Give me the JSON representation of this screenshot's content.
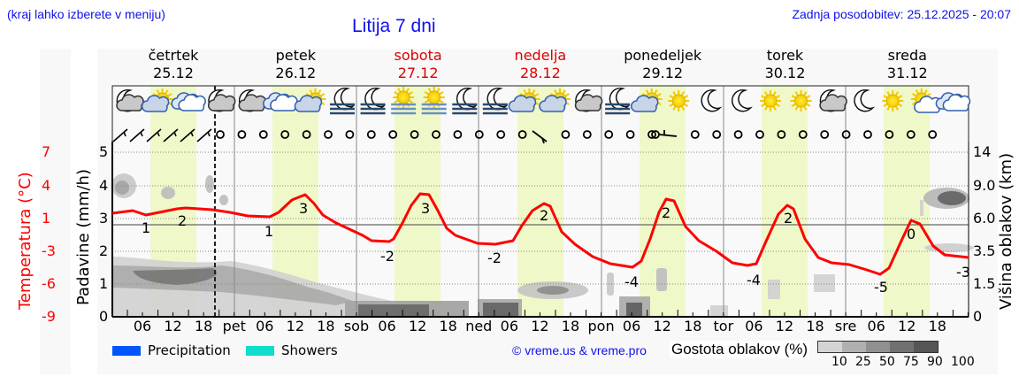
{
  "header": {
    "note": "(kraj lahko izberete v meniju)",
    "title": "Litija 7 dni",
    "updated": "Zadnja posodobitev: 25.12.2025 - 20:07"
  },
  "days": [
    {
      "name": "četrtek",
      "date": "25.12",
      "weekend": false
    },
    {
      "name": "petek",
      "date": "26.12",
      "weekend": false
    },
    {
      "name": "sobota",
      "date": "27.12",
      "weekend": true
    },
    {
      "name": "nedelja",
      "date": "28.12",
      "weekend": true
    },
    {
      "name": "ponedeljek",
      "date": "29.12",
      "weekend": false
    },
    {
      "name": "torek",
      "date": "30.12",
      "weekend": false
    },
    {
      "name": "sreda",
      "date": "31.12",
      "weekend": false
    }
  ],
  "axes": {
    "left_title": "Padavine (mm/h)",
    "left_ticks": [
      "0",
      "1",
      "2",
      "3",
      "4",
      "5"
    ],
    "temp_title": "Temperatura (°C)",
    "temp_ticks": [
      "-9",
      "-6",
      "-3",
      "1",
      "4",
      "7"
    ],
    "right_title": "Višina oblakov (km)",
    "right_ticks": [
      "0",
      "1.5",
      "3.5",
      "6.0",
      "9.0",
      "14"
    ],
    "x_ticks": [
      "06",
      "12",
      "18",
      "pet",
      "06",
      "12",
      "18",
      "sob",
      "06",
      "12",
      "18",
      "ned",
      "06",
      "12",
      "18",
      "pon",
      "06",
      "12",
      "18",
      "tor",
      "06",
      "12",
      "18",
      "sre",
      "06",
      "12",
      "18"
    ]
  },
  "weather_icons": [
    "night-cloudy",
    "partly-sunny",
    "cloudy",
    "night-cloudy",
    "night-cloudy",
    "cloudy",
    "partly-sunny",
    "night-fog",
    "night-fog",
    "sun-fog",
    "sun-fog",
    "night-fog",
    "night-fog",
    "partly-sunny",
    "partly-sunny",
    "night-cloudy",
    "night-fog",
    "partly-sunny",
    "sunny",
    "moon",
    "moon",
    "sunny",
    "sunny",
    "night-cloudy",
    "moon",
    "sunny",
    "sunny-cloud",
    "cloudy"
  ],
  "legend": {
    "precipitation": "Precipitation",
    "showers": "Showers",
    "precip_color": "#0055ff",
    "showers_color": "#11ddcc",
    "credit": "© vreme.us & vreme.pro",
    "density_title": "Gostota oblakov (%)",
    "density_scale": [
      "10",
      "25",
      "50",
      "75",
      "90",
      "100"
    ]
  },
  "chart_data": {
    "type": "line",
    "title": "Litija 7 dni",
    "xlabel": "",
    "ylabel": "Temperatura (°C)",
    "series": [
      {
        "name": "Temperatura (°C)",
        "color": "#ff0000",
        "x": [
          "25.12 00",
          "25.12 06",
          "25.12 12",
          "25.12 18",
          "26.12 00",
          "26.12 06",
          "26.12 12",
          "26.12 18",
          "27.12 00",
          "27.12 06",
          "27.12 12",
          "27.12 18",
          "28.12 00",
          "28.12 06",
          "28.12 12",
          "28.12 18",
          "29.12 00",
          "29.12 06",
          "29.12 12",
          "29.12 18",
          "30.12 00",
          "30.12 06",
          "30.12 12",
          "30.12 18",
          "31.12 00",
          "31.12 06",
          "31.12 12",
          "31.12 18"
        ],
        "values": [
          1.5,
          1,
          2,
          2,
          1.5,
          1,
          3,
          0.5,
          -1,
          -2,
          3,
          -0.5,
          -2,
          -2,
          2.5,
          -1.5,
          -3,
          -4,
          2,
          -2,
          -4,
          -4,
          2,
          -3,
          -3.5,
          -5,
          0,
          -3
        ]
      }
    ],
    "labeled_points": [
      {
        "x": "25.12 08",
        "label": "1"
      },
      {
        "x": "25.12 14",
        "label": "2"
      },
      {
        "x": "26.12 05",
        "label": "1"
      },
      {
        "x": "26.12 13",
        "label": "3"
      },
      {
        "x": "27.12 04",
        "label": "-2"
      },
      {
        "x": "27.12 13",
        "label": "3"
      },
      {
        "x": "28.12 04",
        "label": "-2"
      },
      {
        "x": "28.12 13",
        "label": "2"
      },
      {
        "x": "29.12 06",
        "label": "-4"
      },
      {
        "x": "29.12 13",
        "label": "2"
      },
      {
        "x": "30.12 06",
        "label": "-4"
      },
      {
        "x": "30.12 13",
        "label": "2"
      },
      {
        "x": "31.12 06",
        "label": "-5"
      },
      {
        "x": "31.12 13",
        "label": "0"
      },
      {
        "x": "31.12 22",
        "label": "-3"
      }
    ],
    "left_axis": {
      "label": "Padavine (mm/h)",
      "range": [
        0,
        5
      ]
    },
    "temp_axis": {
      "label": "Temperatura (°C)",
      "ticks": [
        -9,
        -6,
        -3,
        1,
        4,
        7
      ]
    },
    "right_axis": {
      "label": "Višina oblakov (km)",
      "ticks": [
        0,
        1.5,
        3.5,
        6.0,
        9.0,
        14
      ]
    },
    "precipitation": "none",
    "grid": true,
    "legend_position": "bottom"
  }
}
